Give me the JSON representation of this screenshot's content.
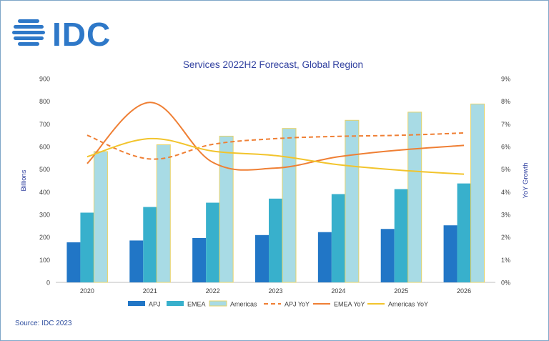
{
  "brand": {
    "logo_text": "IDC",
    "color": "#2e78c8"
  },
  "source": "Source: IDC 2023",
  "colors": {
    "APJ": "#2176c6",
    "EMEA": "#38b0cc",
    "Americas": "#a8dbe5",
    "Americas_border": "#e6d36a",
    "APJ YoY": "#ef7f34",
    "EMEA YoY": "#ef7f34",
    "Americas YoY": "#f2c42c",
    "title": "#2f3f9f",
    "axis_text": "#404040"
  },
  "chart_data": {
    "type": "bar",
    "title": "Services 2022H2 Forecast, Global Region",
    "ylabel": "Billions",
    "y2label": "YoY Growth",
    "categories": [
      "2020",
      "2021",
      "2022",
      "2023",
      "2024",
      "2025",
      "2026"
    ],
    "ylim": [
      0,
      900
    ],
    "y2lim": [
      0,
      9
    ],
    "yticks": [
      "0",
      "100",
      "200",
      "300",
      "400",
      "500",
      "600",
      "700",
      "800",
      "900"
    ],
    "y2ticks": [
      "0%",
      "1%",
      "2%",
      "3%",
      "4%",
      "5%",
      "6%",
      "7%",
      "8%",
      "9%"
    ],
    "series": [
      {
        "name": "APJ",
        "kind": "bar",
        "values": [
          177,
          185,
          196,
          209,
          222,
          236,
          252
        ]
      },
      {
        "name": "EMEA",
        "kind": "bar",
        "values": [
          308,
          333,
          352,
          370,
          390,
          412,
          437
        ]
      },
      {
        "name": "Americas",
        "kind": "bar",
        "values": [
          578,
          608,
          646,
          680,
          716,
          752,
          788
        ]
      },
      {
        "name": "APJ YoY",
        "kind": "line",
        "style": "dashed",
        "axis": "right",
        "values": [
          6.5,
          5.45,
          6.1,
          6.35,
          6.45,
          6.5,
          6.6
        ]
      },
      {
        "name": "EMEA YoY",
        "kind": "line",
        "style": "solid",
        "axis": "right",
        "values": [
          5.25,
          7.95,
          5.3,
          5.05,
          5.55,
          5.85,
          6.05
        ]
      },
      {
        "name": "Americas YoY",
        "kind": "line",
        "style": "solid",
        "axis": "right",
        "values": [
          5.55,
          6.35,
          5.8,
          5.6,
          5.2,
          4.95,
          4.78
        ]
      }
    ],
    "legend_position": "bottom",
    "grid": false
  }
}
